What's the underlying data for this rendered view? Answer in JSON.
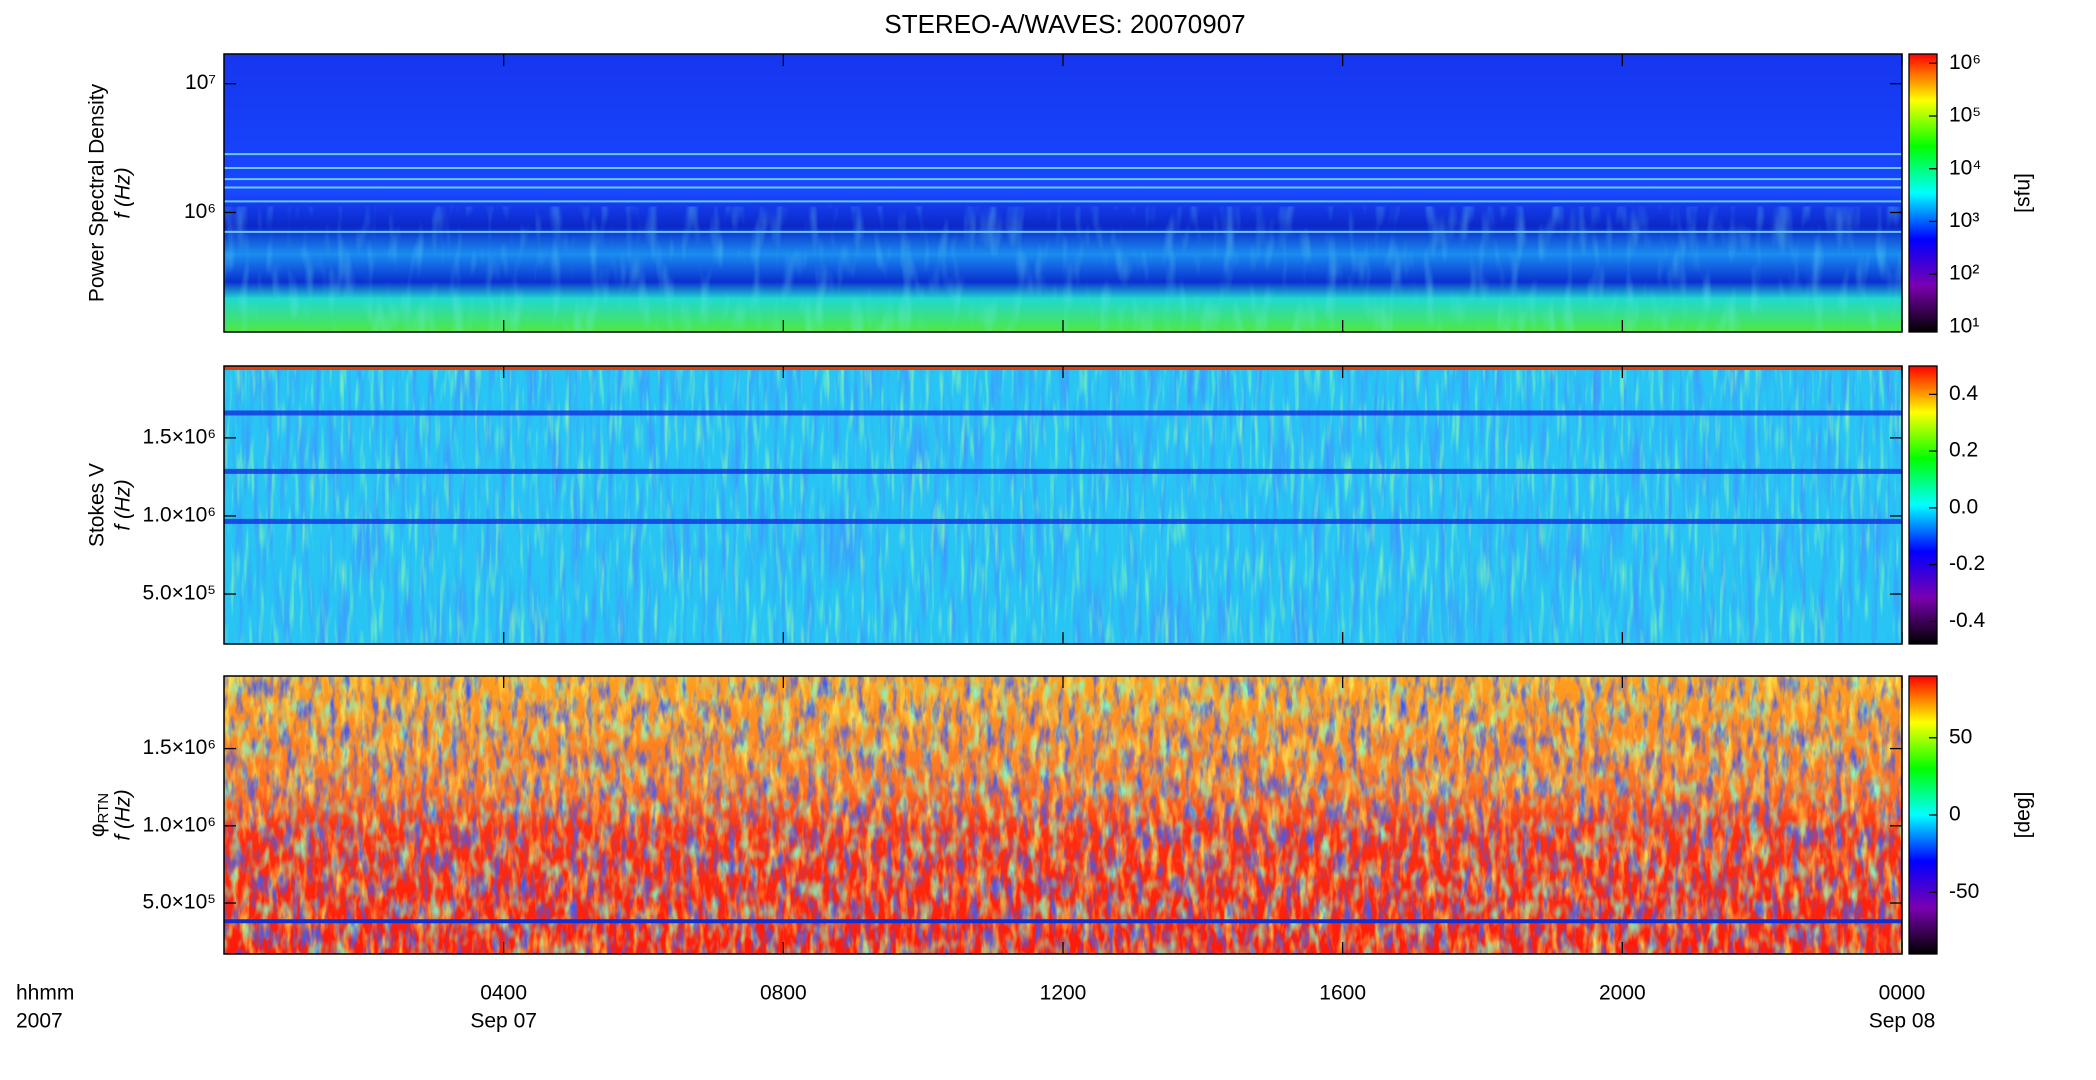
{
  "chart_data": [
    {
      "type": "heatmap",
      "title": "STEREO-A/WAVES: 20070907",
      "ylabel": [
        "Power Spectral Density",
        "f (Hz)"
      ],
      "ylog": true,
      "ylim": [
        118000,
        17000000
      ],
      "yticks": [
        {
          "value": 1000000,
          "label": "10⁶"
        },
        {
          "value": 10000000,
          "label": "10⁷"
        }
      ],
      "xlim": [
        0,
        24
      ],
      "clog": true,
      "clim": [
        8,
        1500000
      ],
      "cticks": [
        {
          "value": 10,
          "label": "10¹"
        },
        {
          "value": 100,
          "label": "10²"
        },
        {
          "value": 1000,
          "label": "10³"
        },
        {
          "value": 10000,
          "label": "10⁴"
        },
        {
          "value": 100000,
          "label": "10⁵"
        },
        {
          "value": 1000000,
          "label": "10⁶"
        }
      ],
      "clabel": "[sfu]",
      "colormap": [
        "#000000",
        "#7a00b0",
        "#0000ff",
        "#00ffff",
        "#00ff00",
        "#ffff00",
        "#ff0000"
      ]
    },
    {
      "type": "heatmap",
      "ylabel": [
        "Stokes V",
        "f (Hz)"
      ],
      "ylog": false,
      "ylim": [
        180000,
        1960000
      ],
      "yticks": [
        {
          "value": 500000,
          "label": "5.0×10⁵"
        },
        {
          "value": 1000000,
          "label": "1.0×10⁶"
        },
        {
          "value": 1500000,
          "label": "1.5×10⁶"
        }
      ],
      "xlim": [
        0,
        24
      ],
      "clog": false,
      "clim": [
        -0.48,
        0.5
      ],
      "cticks": [
        -0.4,
        -0.2,
        {
          "value": 0,
          "label": "0.0"
        },
        0.2,
        0.4
      ],
      "colormap": [
        "#000000",
        "#7a00b0",
        "#0000ff",
        "#00ffff",
        "#00ff00",
        "#ffff00",
        "#ff0000"
      ]
    },
    {
      "type": "heatmap",
      "ylabel": [
        "φ",
        "f (Hz)"
      ],
      "ylabel_sub": "RTN",
      "ylog": false,
      "ylim": [
        170000,
        1970000
      ],
      "yticks": [
        {
          "value": 500000,
          "label": "5.0×10⁵"
        },
        {
          "value": 1000000,
          "label": "1.0×10⁶"
        },
        {
          "value": 1500000,
          "label": "1.5×10⁶"
        }
      ],
      "xlim": [
        0,
        24
      ],
      "xticks": [
        {
          "value": 4,
          "label": "0400"
        },
        {
          "value": 8,
          "label": "0800"
        },
        {
          "value": 12,
          "label": "1200"
        },
        {
          "value": 16,
          "label": "1600"
        },
        {
          "value": 20,
          "label": "2000"
        },
        {
          "value": 24,
          "label": "0000"
        }
      ],
      "xsublabels": [
        {
          "value": 4,
          "label": "Sep 07"
        },
        {
          "value": 24,
          "label": "Sep 08"
        }
      ],
      "xlabel": [
        "hhmm",
        "2007"
      ],
      "clog": false,
      "clim": [
        -90,
        90
      ],
      "cticks": [
        -50,
        0,
        50
      ],
      "clabel": "[deg]",
      "colormap": [
        "#000000",
        "#7a00b0",
        "#0000ff",
        "#00ffff",
        "#00ff00",
        "#ffff00",
        "#ff0000"
      ]
    }
  ]
}
